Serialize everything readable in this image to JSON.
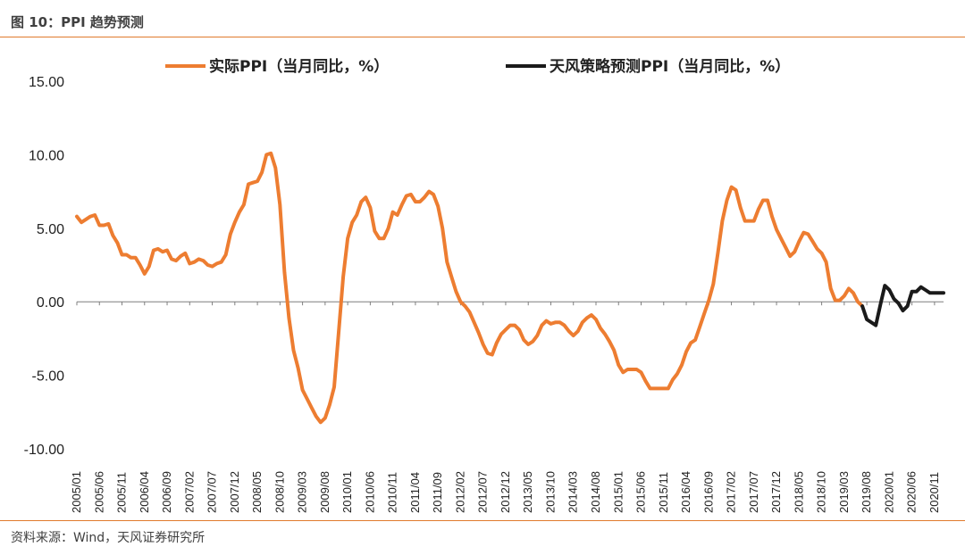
{
  "header": {
    "title": "图 10：PPI 趋势预测"
  },
  "footer": {
    "source": "资料来源：Wind，天风证券研究所"
  },
  "colors": {
    "accent": "#e07a2c",
    "actual": "#ed7d31",
    "forecast": "#1a1a1a"
  },
  "chart_data": {
    "type": "line",
    "title": "",
    "xlabel": "",
    "ylabel": "",
    "ylim": [
      -10,
      15
    ],
    "yticks": [
      "15.00",
      "10.00",
      "5.00",
      "0.00",
      "-5.00",
      "-10.00"
    ],
    "xticks": [
      "2005/01",
      "2005/06",
      "2005/11",
      "2006/04",
      "2006/09",
      "2007/02",
      "2007/07",
      "2007/12",
      "2008/05",
      "2008/10",
      "2009/03",
      "2009/08",
      "2010/01",
      "2010/06",
      "2010/11",
      "2011/04",
      "2011/09",
      "2012/02",
      "2012/07",
      "2012/12",
      "2013/05",
      "2013/10",
      "2014/03",
      "2014/08",
      "2015/01",
      "2015/06",
      "2015/11",
      "2016/04",
      "2016/09",
      "2017/02",
      "2017/07",
      "2017/12",
      "2018/05",
      "2018/10",
      "2019/03",
      "2019/08",
      "2020/01",
      "2020/06",
      "2020/11"
    ],
    "legend_position": "top",
    "grid": false,
    "series": [
      {
        "name": "实际PPI（当月同比，%）",
        "color": "#ed7d31",
        "x": [
          "2005/01",
          "2005/02",
          "2005/03",
          "2005/04",
          "2005/05",
          "2005/06",
          "2005/07",
          "2005/08",
          "2005/09",
          "2005/10",
          "2005/11",
          "2005/12",
          "2006/01",
          "2006/02",
          "2006/03",
          "2006/04",
          "2006/05",
          "2006/06",
          "2006/07",
          "2006/08",
          "2006/09",
          "2006/10",
          "2006/11",
          "2006/12",
          "2007/01",
          "2007/02",
          "2007/03",
          "2007/04",
          "2007/05",
          "2007/06",
          "2007/07",
          "2007/08",
          "2007/09",
          "2007/10",
          "2007/11",
          "2007/12",
          "2008/01",
          "2008/02",
          "2008/03",
          "2008/04",
          "2008/05",
          "2008/06",
          "2008/07",
          "2008/08",
          "2008/09",
          "2008/10",
          "2008/11",
          "2008/12",
          "2009/01",
          "2009/02",
          "2009/03",
          "2009/04",
          "2009/05",
          "2009/06",
          "2009/07",
          "2009/08",
          "2009/09",
          "2009/10",
          "2009/11",
          "2009/12",
          "2010/01",
          "2010/02",
          "2010/03",
          "2010/04",
          "2010/05",
          "2010/06",
          "2010/07",
          "2010/08",
          "2010/09",
          "2010/10",
          "2010/11",
          "2010/12",
          "2011/01",
          "2011/02",
          "2011/03",
          "2011/04",
          "2011/05",
          "2011/06",
          "2011/07",
          "2011/08",
          "2011/09",
          "2011/10",
          "2011/11",
          "2011/12",
          "2012/01",
          "2012/02",
          "2012/03",
          "2012/04",
          "2012/05",
          "2012/06",
          "2012/07",
          "2012/08",
          "2012/09",
          "2012/10",
          "2012/11",
          "2012/12",
          "2013/01",
          "2013/02",
          "2013/03",
          "2013/04",
          "2013/05",
          "2013/06",
          "2013/07",
          "2013/08",
          "2013/09",
          "2013/10",
          "2013/11",
          "2013/12",
          "2014/01",
          "2014/02",
          "2014/03",
          "2014/04",
          "2014/05",
          "2014/06",
          "2014/07",
          "2014/08",
          "2014/09",
          "2014/10",
          "2014/11",
          "2014/12",
          "2015/01",
          "2015/02",
          "2015/03",
          "2015/04",
          "2015/05",
          "2015/06",
          "2015/07",
          "2015/08",
          "2015/09",
          "2015/10",
          "2015/11",
          "2015/12",
          "2016/01",
          "2016/02",
          "2016/03",
          "2016/04",
          "2016/05",
          "2016/06",
          "2016/07",
          "2016/08",
          "2016/09",
          "2016/10",
          "2016/11",
          "2016/12",
          "2017/01",
          "2017/02",
          "2017/03",
          "2017/04",
          "2017/05",
          "2017/06",
          "2017/07",
          "2017/08",
          "2017/09",
          "2017/10",
          "2017/11",
          "2017/12",
          "2018/01",
          "2018/02",
          "2018/03",
          "2018/04",
          "2018/05",
          "2018/06",
          "2018/07",
          "2018/08",
          "2018/09",
          "2018/10",
          "2018/11",
          "2018/12",
          "2019/01",
          "2019/02",
          "2019/03",
          "2019/04",
          "2019/05",
          "2019/06",
          "2019/07"
        ],
        "values": [
          5.8,
          5.4,
          5.6,
          5.8,
          5.9,
          5.2,
          5.2,
          5.3,
          4.5,
          4.0,
          3.2,
          3.2,
          3.0,
          3.0,
          2.5,
          1.9,
          2.4,
          3.5,
          3.6,
          3.4,
          3.5,
          2.9,
          2.8,
          3.1,
          3.3,
          2.6,
          2.7,
          2.9,
          2.8,
          2.5,
          2.4,
          2.6,
          2.7,
          3.2,
          4.6,
          5.4,
          6.1,
          6.6,
          8.0,
          8.1,
          8.2,
          8.8,
          10.0,
          10.1,
          9.1,
          6.6,
          2.0,
          -1.1,
          -3.3,
          -4.5,
          -6.0,
          -6.6,
          -7.2,
          -7.8,
          -8.2,
          -7.9,
          -7.0,
          -5.8,
          -2.1,
          1.7,
          4.3,
          5.4,
          5.9,
          6.8,
          7.1,
          6.4,
          4.8,
          4.3,
          4.3,
          5.0,
          6.1,
          5.9,
          6.6,
          7.2,
          7.3,
          6.8,
          6.8,
          7.1,
          7.5,
          7.3,
          6.5,
          5.0,
          2.7,
          1.7,
          0.7,
          0.0,
          -0.3,
          -0.7,
          -1.4,
          -2.1,
          -2.9,
          -3.5,
          -3.6,
          -2.8,
          -2.2,
          -1.9,
          -1.6,
          -1.6,
          -1.9,
          -2.6,
          -2.9,
          -2.7,
          -2.3,
          -1.6,
          -1.3,
          -1.5,
          -1.4,
          -1.4,
          -1.6,
          -2.0,
          -2.3,
          -2.0,
          -1.4,
          -1.1,
          -0.9,
          -1.2,
          -1.8,
          -2.2,
          -2.7,
          -3.3,
          -4.3,
          -4.8,
          -4.6,
          -4.6,
          -4.6,
          -4.8,
          -5.4,
          -5.9,
          -5.9,
          -5.9,
          -5.9,
          -5.9,
          -5.3,
          -4.9,
          -4.3,
          -3.4,
          -2.8,
          -2.6,
          -1.7,
          -0.8,
          0.1,
          1.2,
          3.3,
          5.5,
          6.9,
          7.8,
          7.6,
          6.4,
          5.5,
          5.5,
          5.5,
          6.3,
          6.9,
          6.9,
          5.8,
          4.9,
          4.3,
          3.7,
          3.1,
          3.4,
          4.1,
          4.7,
          4.6,
          4.1,
          3.6,
          3.3,
          2.7,
          0.9,
          0.1,
          0.1,
          0.4,
          0.9,
          0.6,
          0.0,
          -0.3
        ]
      },
      {
        "name": "天风策略预测PPI（当月同比，%）",
        "color": "#1a1a1a",
        "x": [
          "2019/07",
          "2019/08",
          "2019/09",
          "2019/10",
          "2019/11",
          "2019/12",
          "2020/01",
          "2020/02",
          "2020/03",
          "2020/04",
          "2020/05",
          "2020/06",
          "2020/07",
          "2020/08",
          "2020/09",
          "2020/10",
          "2020/11",
          "2020/12",
          "2021/01"
        ],
        "values": [
          -0.3,
          -1.2,
          -1.4,
          -1.6,
          -0.2,
          1.1,
          0.8,
          0.2,
          -0.1,
          -0.6,
          -0.3,
          0.7,
          0.7,
          1.0,
          0.8,
          0.6,
          0.6,
          0.6,
          0.6
        ]
      }
    ]
  }
}
